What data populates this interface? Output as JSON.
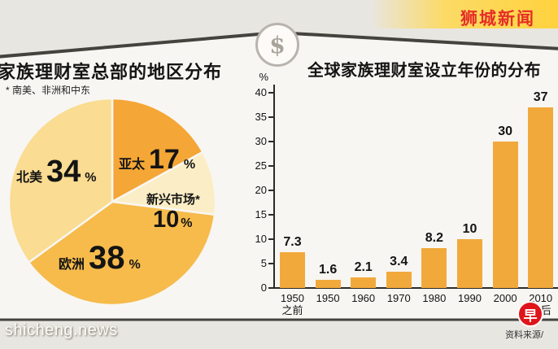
{
  "header": {
    "site_badge": "狮城新闻"
  },
  "house": {
    "money_symbol": "$"
  },
  "symbols": {
    "percent": "%"
  },
  "chart_data": [
    {
      "type": "pie",
      "title": "家族理财室总部的地区分布",
      "footnote": "* 南美、非洲和中东",
      "slices": [
        {
          "label": "亚太",
          "value": 17,
          "color": "#F4A636"
        },
        {
          "label": "新兴市场*",
          "value": 10,
          "color": "#FBEEC6"
        },
        {
          "label": "欧洲",
          "value": 38,
          "color": "#F6BB4B"
        },
        {
          "label": "北美",
          "value": 34,
          "color": "#FADC92"
        }
      ]
    },
    {
      "type": "bar",
      "title": "全球家族理财室设立年份的分布",
      "ylabel": "%",
      "ylim": [
        0,
        40
      ],
      "ytick_step": 5,
      "bar_color": "#F2A93C",
      "categories": [
        "1950之前",
        "1950",
        "1960",
        "1970",
        "1980",
        "1990",
        "2000",
        "2010之后"
      ],
      "values": [
        7.3,
        1.6,
        2.1,
        3.4,
        8.2,
        10,
        30,
        37
      ]
    }
  ],
  "footer": {
    "watermark": "shicheng.news",
    "source_label": "资料来源/",
    "logo_glyph": "早"
  }
}
